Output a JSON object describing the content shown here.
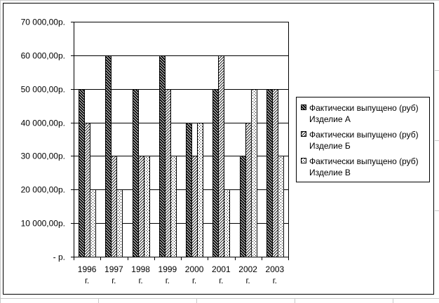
{
  "chart_data": {
    "type": "bar",
    "categories": [
      [
        "1996",
        "г."
      ],
      [
        "1997",
        "г."
      ],
      [
        "1998",
        "г."
      ],
      [
        "1999",
        "г."
      ],
      [
        "2000",
        "г."
      ],
      [
        "2001",
        "г."
      ],
      [
        "2002",
        "г."
      ],
      [
        "2003",
        "г."
      ]
    ],
    "series": [
      {
        "name": [
          "Фактически выпущено (руб)",
          "Изделие А"
        ],
        "values": [
          50000,
          60000,
          50000,
          60000,
          40000,
          50000,
          30000,
          50000
        ],
        "pattern": "dense-diagonal"
      },
      {
        "name": [
          "Фактически выпущено (руб)",
          "Изделие Б"
        ],
        "values": [
          40000,
          30000,
          30000,
          50000,
          30000,
          60000,
          40000,
          50000
        ],
        "pattern": "light-diagonal"
      },
      {
        "name": [
          "Фактически выпущено (руб)",
          "Изделие В"
        ],
        "values": [
          20000,
          20000,
          30000,
          30000,
          40000,
          20000,
          50000,
          30000
        ],
        "pattern": "dotted"
      }
    ],
    "y_ticks": [
      {
        "value": 0,
        "label": "-   р."
      },
      {
        "value": 10000,
        "label": "10 000,00р."
      },
      {
        "value": 20000,
        "label": "20 000,00р."
      },
      {
        "value": 30000,
        "label": "30 000,00р."
      },
      {
        "value": 40000,
        "label": "40 000,00р."
      },
      {
        "value": 50000,
        "label": "50 000,00р."
      },
      {
        "value": 60000,
        "label": "60 000,00р."
      },
      {
        "value": 70000,
        "label": "70 000,00р."
      }
    ],
    "ylim": [
      0,
      70000
    ],
    "grid": true,
    "legend_position": "right",
    "colors": {
      "fill": "#ffffff",
      "ink": "#000000",
      "sheet_grid": "#c0c0c0"
    }
  }
}
